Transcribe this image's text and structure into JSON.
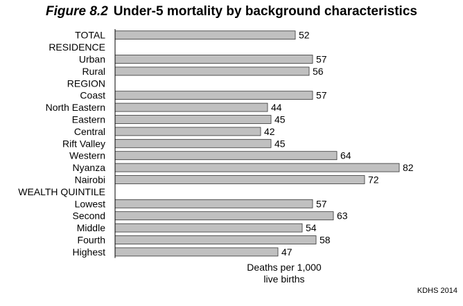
{
  "figure": {
    "number": "Figure 8.2",
    "title": "Under-5 mortality by background characteristics",
    "source": "KDHS 2014"
  },
  "chart_data": {
    "type": "bar",
    "orientation": "horizontal",
    "title": "Under-5 mortality by background characteristics",
    "xlabel_lines": [
      "Deaths per 1,000",
      "live births"
    ],
    "xlim": [
      0,
      100
    ],
    "grid": false,
    "legend": "none",
    "bar_color": "#c0c0c0",
    "rows": [
      {
        "label": "TOTAL",
        "value": 52
      },
      {
        "label": "RESIDENCE",
        "value": null,
        "heading": true
      },
      {
        "label": "Urban",
        "value": 57
      },
      {
        "label": "Rural",
        "value": 56
      },
      {
        "label": "REGION",
        "value": null,
        "heading": true
      },
      {
        "label": "Coast",
        "value": 57
      },
      {
        "label": "North Eastern",
        "value": 44
      },
      {
        "label": "Eastern",
        "value": 45
      },
      {
        "label": "Central",
        "value": 42
      },
      {
        "label": "Rift Valley",
        "value": 45
      },
      {
        "label": "Western",
        "value": 64
      },
      {
        "label": "Nyanza",
        "value": 82
      },
      {
        "label": "Nairobi",
        "value": 72
      },
      {
        "label": "WEALTH QUINTILE",
        "value": null,
        "heading": true
      },
      {
        "label": "Lowest",
        "value": 57
      },
      {
        "label": "Second",
        "value": 63
      },
      {
        "label": "Middle",
        "value": 54
      },
      {
        "label": "Fourth",
        "value": 58
      },
      {
        "label": "Highest",
        "value": 47
      }
    ]
  }
}
